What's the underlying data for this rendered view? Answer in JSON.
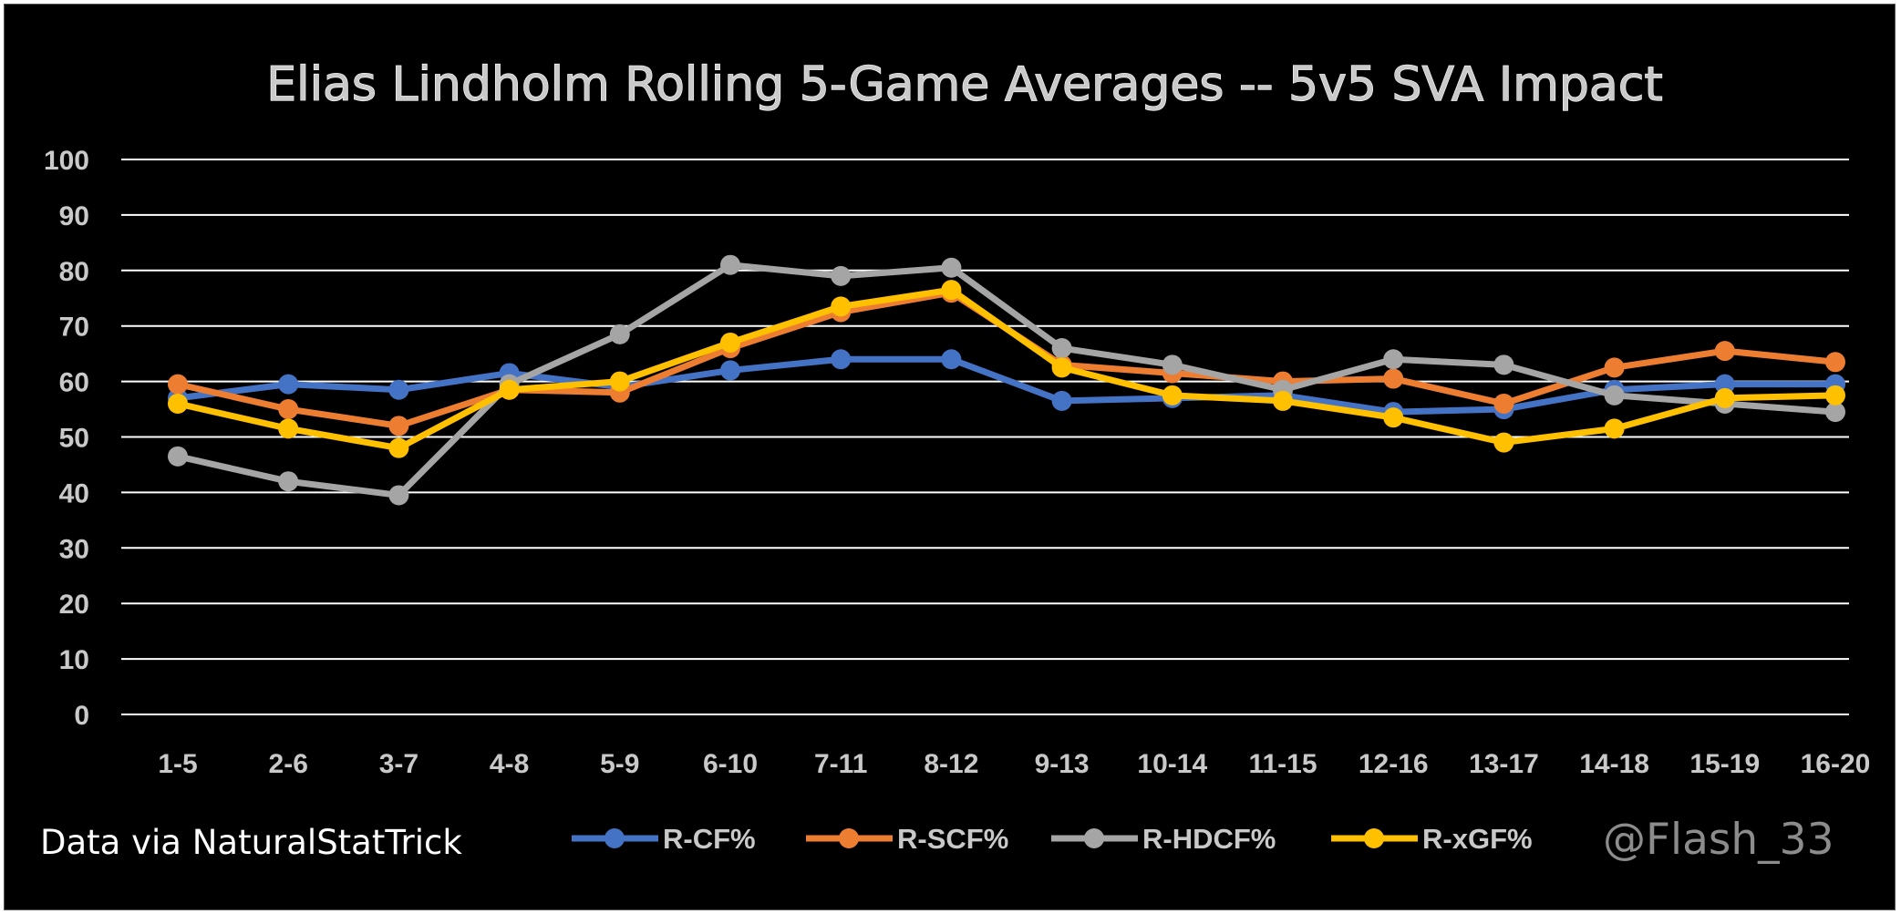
{
  "chart_data": {
    "type": "line",
    "title": "Elias Lindholm Rolling 5-Game Averages -- 5v5 SVA Impact",
    "xlabel": "",
    "ylabel": "",
    "ylim": [
      0,
      100
    ],
    "yticks": [
      "0",
      "10",
      "20",
      "30",
      "40",
      "50",
      "60",
      "70",
      "80",
      "90",
      "100"
    ],
    "grid": true,
    "legend_position": "bottom",
    "categories": [
      "1-5",
      "2-6",
      "3-7",
      "4-8",
      "5-9",
      "6-10",
      "7-11",
      "8-12",
      "9-13",
      "10-14",
      "11-15",
      "12-16",
      "13-17",
      "14-18",
      "15-19",
      "16-20"
    ],
    "series": [
      {
        "name": "R-CF%",
        "color": "#4472c4",
        "values": [
          57,
          59.5,
          58.5,
          61.5,
          59,
          62,
          64,
          64,
          56.5,
          57,
          57.5,
          54.5,
          55,
          58.5,
          59.5,
          59.5
        ]
      },
      {
        "name": "R-SCF%",
        "color": "#ed7d31",
        "values": [
          59.5,
          55,
          52,
          58.5,
          58,
          66,
          72.5,
          76,
          63,
          61.5,
          60,
          60.5,
          56,
          62.5,
          65.5,
          63.5
        ]
      },
      {
        "name": "R-HDCF%",
        "color": "#a5a5a5",
        "values": [
          46.5,
          42,
          39.5,
          59.5,
          68.5,
          81,
          79,
          80.5,
          66,
          63,
          58.5,
          64,
          63,
          57.5,
          56,
          54.5
        ]
      },
      {
        "name": "R-xGF%",
        "color": "#ffc000",
        "values": [
          56,
          51.5,
          48,
          58.5,
          60,
          67,
          73.5,
          76.5,
          62.5,
          57.5,
          56.5,
          53.5,
          49,
          51.5,
          57,
          57.5
        ]
      }
    ]
  },
  "footer": {
    "source": "Data via NaturalStatTrick",
    "handle": "@Flash_33"
  }
}
